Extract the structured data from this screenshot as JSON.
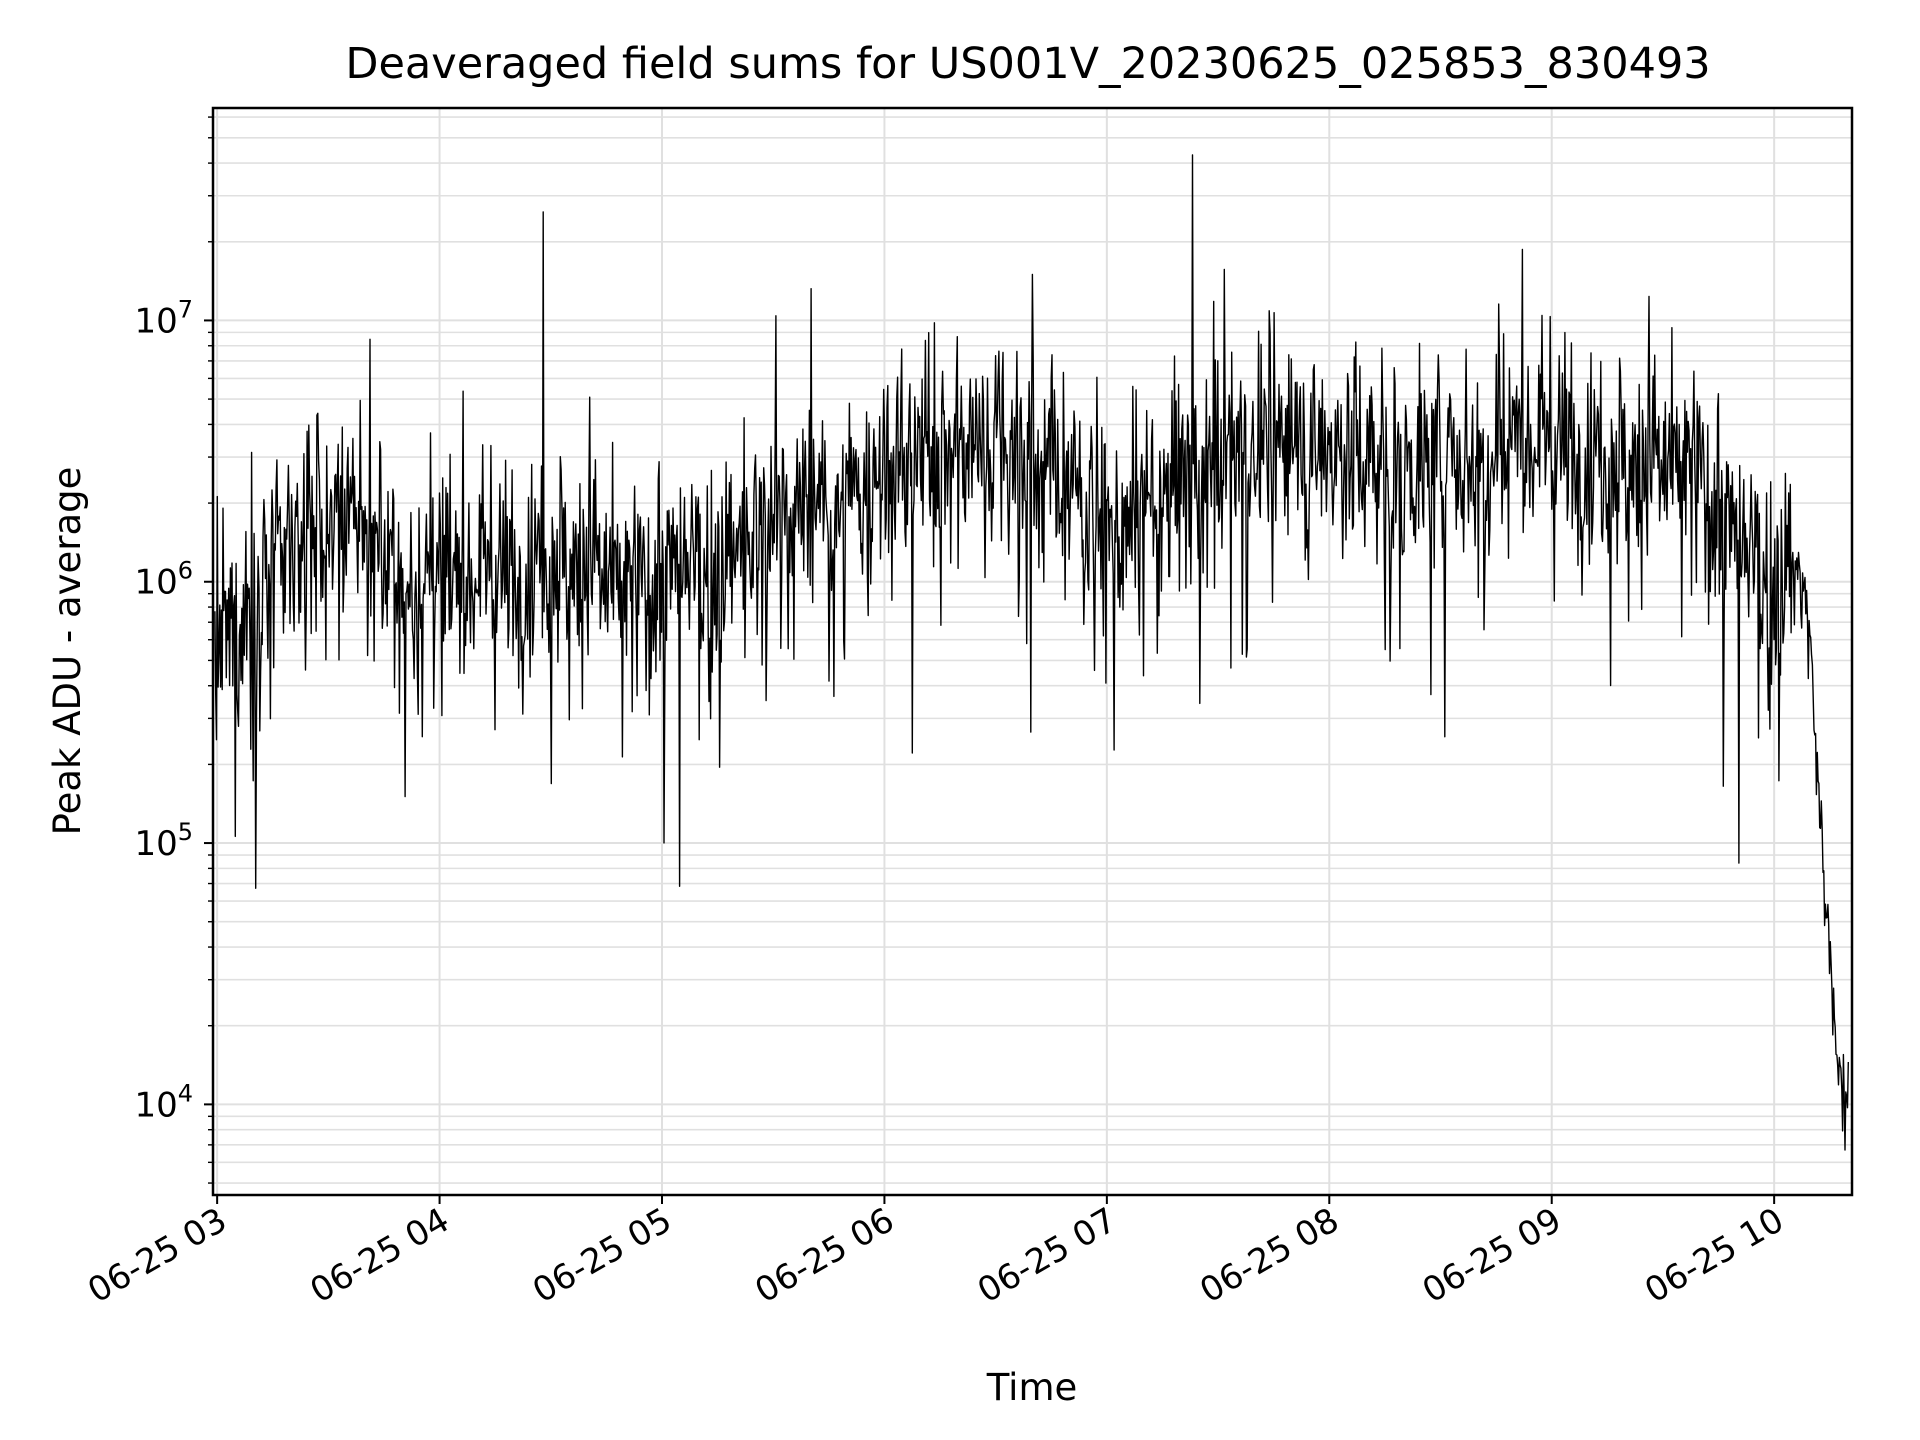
{
  "chart_data": {
    "type": "line",
    "title": "Deaveraged field sums for US001V_20230625_025853_830493",
    "xlabel": "Time",
    "ylabel": "Peak ADU - average",
    "y_scale": "log",
    "ylim": [
      4500,
      65000000
    ],
    "xlim": [
      "06-25 02:58:53",
      "06-25 10:21:00"
    ],
    "grid": true,
    "line_color": "#000000",
    "x_tick_labels": [
      "06-25 03",
      "06-25 04",
      "06-25 05",
      "06-25 06",
      "06-25 07",
      "06-25 08",
      "06-25 09",
      "06-25 10"
    ],
    "y_tick_labels": [
      {
        "value": 10000,
        "base": "10",
        "exp": "4"
      },
      {
        "value": 100000,
        "base": "10",
        "exp": "5"
      },
      {
        "value": 1000000,
        "base": "10",
        "exp": "6"
      },
      {
        "value": 10000000,
        "base": "10",
        "exp": "7"
      }
    ],
    "series": [
      {
        "x": [
          "06-25 02:59",
          "06-25 03:10",
          "06-25 03:20",
          "06-25 03:30",
          "06-25 03:40",
          "06-25 03:50",
          "06-25 04:00",
          "06-25 04:10",
          "06-25 04:20",
          "06-25 04:30",
          "06-25 04:40",
          "06-25 04:50",
          "06-25 05:00",
          "06-25 05:10",
          "06-25 05:20",
          "06-25 05:30",
          "06-25 05:40",
          "06-25 05:50",
          "06-25 06:00",
          "06-25 06:10",
          "06-25 06:20",
          "06-25 06:30",
          "06-25 06:40",
          "06-25 06:50",
          "06-25 07:00",
          "06-25 07:10",
          "06-25 07:20",
          "06-25 07:30",
          "06-25 07:40",
          "06-25 07:50",
          "06-25 08:00",
          "06-25 08:10",
          "06-25 08:20",
          "06-25 08:30",
          "06-25 08:40",
          "06-25 08:50",
          "06-25 09:00",
          "06-25 09:10",
          "06-25 09:20",
          "06-25 09:30",
          "06-25 09:40",
          "06-25 09:50",
          "06-25 10:00",
          "06-25 10:05",
          "06-25 10:08",
          "06-25 10:10",
          "06-25 10:12",
          "06-25 10:14",
          "06-25 10:16",
          "06-25 10:18",
          "06-25 10:20"
        ],
        "y": [
          500000,
          800000,
          1400000,
          1600000,
          1500000,
          900000,
          1000000,
          1200000,
          1100000,
          1300000,
          1200000,
          900000,
          1000000,
          1100000,
          1200000,
          1700000,
          1900000,
          1800000,
          2500000,
          3000000,
          3300000,
          3500000,
          3000000,
          2200000,
          1600000,
          1700000,
          2500000,
          3000000,
          3200000,
          3400000,
          3200000,
          3000000,
          2800000,
          2900000,
          3000000,
          4000000,
          3600000,
          3200000,
          3000000,
          2800000,
          2500000,
          1300000,
          1000000,
          1100000,
          1000000,
          500000,
          150000,
          60000,
          20000,
          12000,
          10000
        ]
      }
    ],
    "notable_spikes": [
      {
        "x": "06-25 04:28",
        "y": 26000000
      },
      {
        "x": "06-25 06:40",
        "y": 15000000
      },
      {
        "x": "06-25 07:23",
        "y": 43000000
      }
    ]
  }
}
